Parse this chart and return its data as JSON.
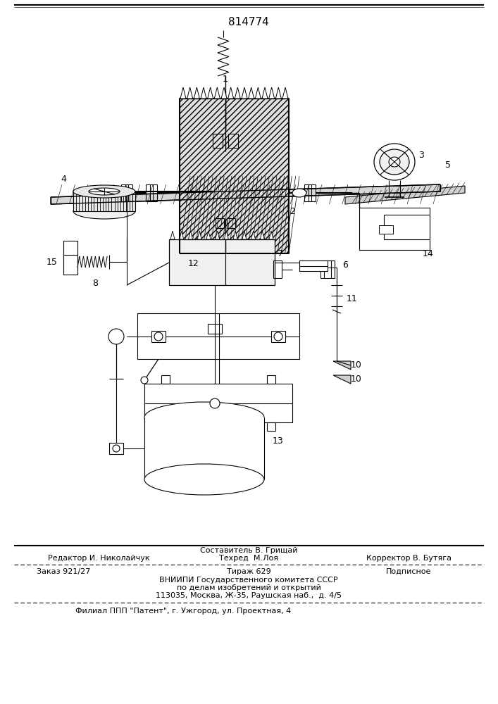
{
  "title": "814774",
  "bg_color": "#ffffff",
  "black": "#000000",
  "footer": {
    "line1_sestavitel": "Составитель В. Грищай",
    "line2_redaktor": "Редактор И. Николайчук",
    "line2_tehred": "Техред  М.Лоя",
    "line2_korrektor": "Корректор В. Бутяга",
    "line3_zakaz": "Заказ 921/27",
    "line3_tirazh": "Тираж 629",
    "line3_podpisnoe": "Подписное",
    "line4": "ВНИИПИ Государственного комитета СССР",
    "line5": "по делам изобретений и открытий",
    "line6": "113035, Москва, Ж-35, Раушская наб.,  д. 4/5",
    "line7": "Филиал ППП \"Патент\", г. Ужгород, ул. Проектная, 4"
  }
}
